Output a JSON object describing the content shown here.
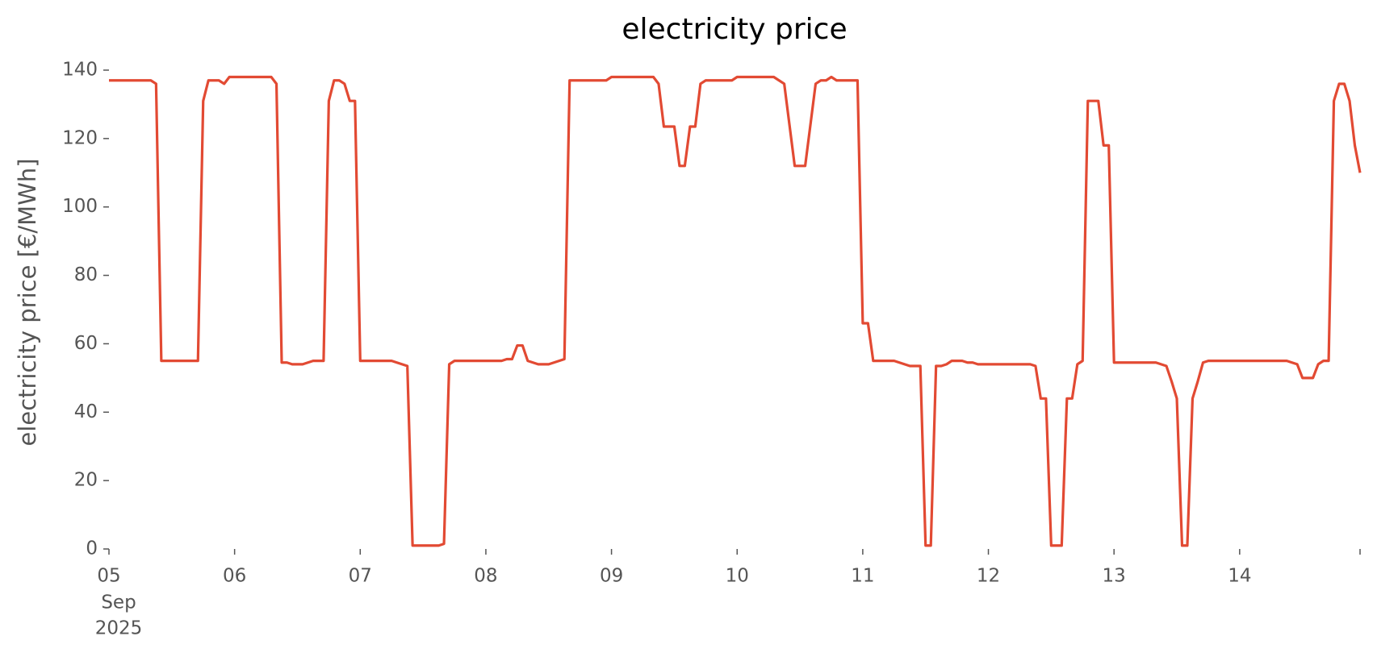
{
  "chart_data": {
    "type": "line",
    "title": "electricity price",
    "y_label": "electricity price [€/MWh]",
    "color": "#e24a33",
    "x": [
      0,
      1,
      2,
      3,
      4,
      5,
      6,
      7,
      8,
      9,
      10,
      11,
      12,
      13,
      14,
      15,
      16,
      17,
      18,
      19,
      20,
      21,
      22,
      23,
      24,
      25,
      26,
      27,
      28,
      29,
      30,
      31,
      32,
      33,
      34,
      35,
      36,
      37,
      38,
      39,
      40,
      41,
      42,
      43,
      44,
      45,
      46,
      47,
      48,
      49,
      50,
      51,
      52,
      53,
      54,
      55,
      56,
      57,
      58,
      59,
      60,
      61,
      62,
      63,
      64,
      65,
      66,
      67,
      68,
      69,
      70,
      71,
      72,
      73,
      74,
      75,
      76,
      77,
      78,
      79,
      80,
      81,
      82,
      83,
      84,
      85,
      86,
      87,
      88,
      89,
      90,
      91,
      92,
      93,
      94,
      95,
      96,
      97,
      98,
      99,
      100,
      101,
      102,
      103,
      104,
      105,
      106,
      107,
      108,
      109,
      110,
      111,
      112,
      113,
      114,
      115,
      116,
      117,
      118,
      119,
      120,
      121,
      122,
      123,
      124,
      125,
      126,
      127,
      128,
      129,
      130,
      131,
      132,
      133,
      134,
      135,
      136,
      137,
      138,
      139,
      140,
      141,
      142,
      143,
      144,
      145,
      146,
      147,
      148,
      149,
      150,
      151,
      152,
      153,
      154,
      155,
      156,
      157,
      158,
      159,
      160,
      161,
      162,
      163,
      164,
      165,
      166,
      167,
      168,
      169,
      170,
      171,
      172,
      173,
      174,
      175,
      176,
      177,
      178,
      179,
      180,
      181,
      182,
      183,
      184,
      185,
      186,
      187,
      188,
      189,
      190,
      191,
      192,
      193,
      194,
      195,
      196,
      197,
      198,
      199,
      200,
      201,
      202,
      203,
      204,
      205,
      206,
      207,
      208,
      209,
      210,
      211,
      212,
      213,
      214,
      215,
      216,
      217,
      218,
      219,
      220,
      221,
      222,
      223,
      224,
      225,
      226,
      227,
      228,
      229,
      230,
      231,
      232,
      233,
      234,
      235,
      236,
      237,
      238,
      239
    ],
    "values": [
      137,
      137,
      137,
      137,
      137,
      137,
      137,
      137,
      137,
      136,
      55,
      55,
      55,
      55,
      55,
      55,
      55,
      55,
      131,
      137,
      137,
      137,
      136,
      138,
      138,
      138,
      138,
      138,
      138,
      138,
      138,
      138,
      136,
      54.5,
      54.5,
      54,
      54,
      54,
      54.5,
      55,
      55,
      55,
      131,
      137,
      137,
      136,
      131,
      131,
      55,
      55,
      55,
      55,
      55,
      55,
      55,
      54.5,
      54,
      53.5,
      1,
      1,
      1,
      1,
      1,
      1,
      1.5,
      54,
      55,
      55,
      55,
      55,
      55,
      55,
      55,
      55,
      55,
      55,
      55.5,
      55.5,
      59.5,
      59.5,
      55,
      54.5,
      54,
      54,
      54,
      54.5,
      55,
      55.5,
      137,
      137,
      137,
      137,
      137,
      137,
      137,
      137,
      138,
      138,
      138,
      138,
      138,
      138,
      138,
      138,
      138,
      136,
      123.5,
      123.5,
      123.5,
      112,
      112,
      123.5,
      123.5,
      136,
      137,
      137,
      137,
      137,
      137,
      137,
      138,
      138,
      138,
      138,
      138,
      138,
      138,
      138,
      137,
      136,
      124,
      112,
      112,
      112,
      124,
      136,
      137,
      137,
      138,
      137,
      137,
      137,
      137,
      137,
      66,
      66,
      55,
      55,
      55,
      55,
      55,
      54.5,
      54,
      53.5,
      53.5,
      53.5,
      1,
      1,
      53.5,
      53.5,
      54,
      55,
      55,
      55,
      54.5,
      54.5,
      54,
      54,
      54,
      54,
      54,
      54,
      54,
      54,
      54,
      54,
      54,
      53.5,
      44,
      44,
      1,
      1,
      1,
      44,
      44,
      54,
      55,
      131,
      131,
      131,
      118,
      118,
      54.5,
      54.5,
      54.5,
      54.5,
      54.5,
      54.5,
      54.5,
      54.5,
      54.5,
      54,
      53.5,
      49,
      44,
      1,
      1,
      44,
      49,
      54.5,
      55,
      55,
      55,
      55,
      55,
      55,
      55,
      55,
      55,
      55,
      55,
      55,
      55,
      55,
      55,
      55,
      54.5,
      54,
      50,
      50,
      50,
      54,
      55,
      55,
      131,
      136,
      136,
      131,
      118,
      110
    ],
    "xlim": [
      0,
      239
    ],
    "xticks": [
      {
        "value": 0,
        "label": "05"
      },
      {
        "value": 24,
        "label": "06"
      },
      {
        "value": 48,
        "label": "07"
      },
      {
        "value": 72,
        "label": "08"
      },
      {
        "value": 96,
        "label": "09"
      },
      {
        "value": 120,
        "label": "10"
      },
      {
        "value": 144,
        "label": "11"
      },
      {
        "value": 168,
        "label": "12"
      },
      {
        "value": 192,
        "label": "13"
      },
      {
        "value": 216,
        "label": "14"
      },
      {
        "value": 239,
        "label": null
      }
    ],
    "xtick_month": "Sep",
    "xtick_year": "2025",
    "ylim": [
      0,
      140
    ],
    "yticks": [
      0,
      20,
      40,
      60,
      80,
      100,
      120,
      140
    ],
    "grid": false
  }
}
